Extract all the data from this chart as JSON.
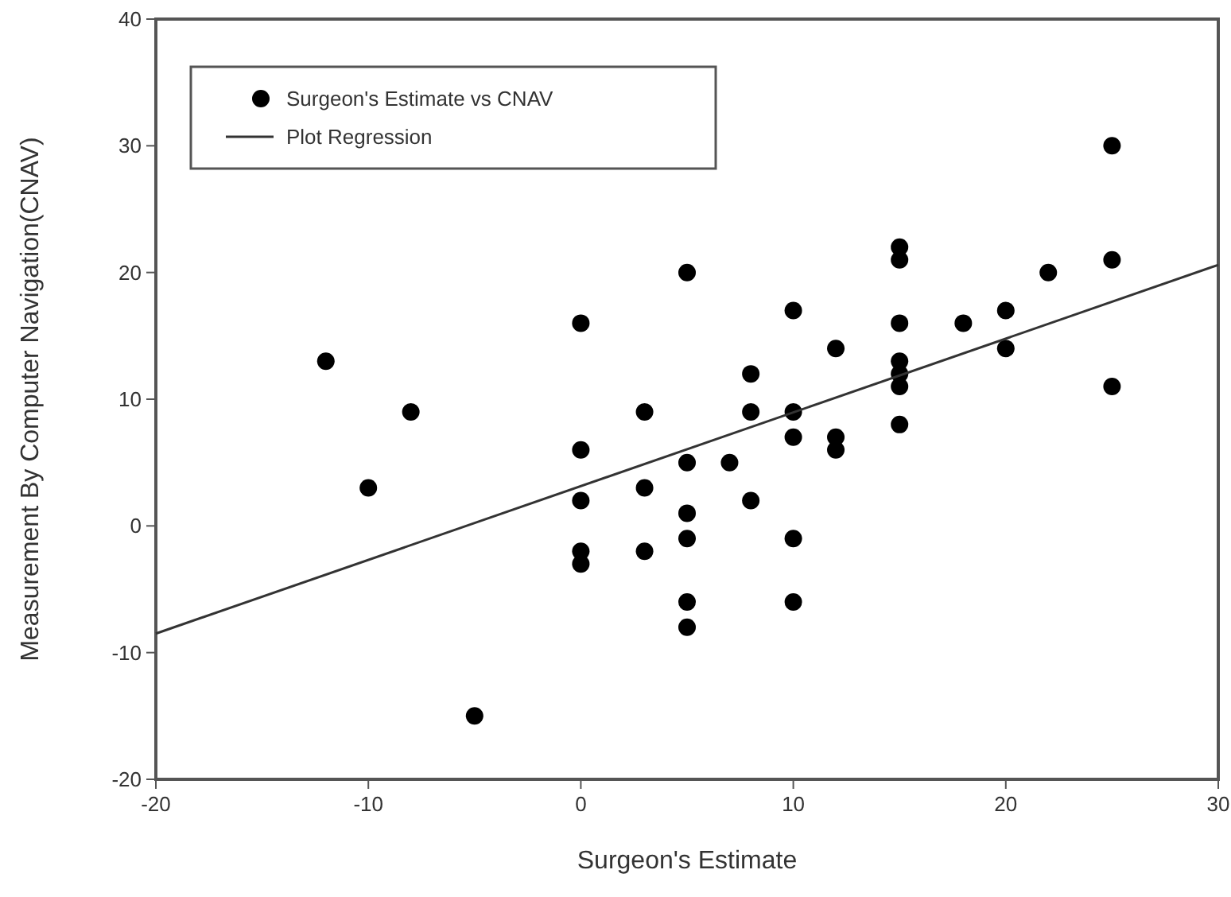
{
  "chart_data": {
    "type": "scatter",
    "xlabel": "Surgeon's Estimate",
    "ylabel": "Measurement By Computer Navigation(CNAV)",
    "xlim": [
      -20,
      30
    ],
    "xticks": [
      -20,
      -10,
      0,
      10,
      20,
      30
    ],
    "ylim": [
      -20,
      40
    ],
    "yticks": [
      -20,
      -10,
      0,
      10,
      20,
      30,
      40
    ],
    "grid": false,
    "legend": "top left",
    "series": [
      {
        "name": "Surgeon's Estimate vs CNAV",
        "marker": "circle",
        "color": "#000000",
        "x": [
          -12,
          -10,
          -8,
          -5,
          0,
          0,
          0,
          0,
          0,
          3,
          3,
          3,
          5,
          5,
          5,
          5,
          5,
          5,
          7,
          8,
          8,
          8,
          10,
          10,
          10,
          10,
          10,
          12,
          12,
          12,
          15,
          15,
          15,
          15,
          15,
          15,
          15,
          18,
          20,
          20,
          22,
          25,
          25,
          25
        ],
        "values": [
          13,
          3,
          9,
          -15,
          16,
          6,
          2,
          -2,
          -3,
          9,
          3,
          -2,
          20,
          5,
          1,
          -1,
          -6,
          -8,
          5,
          12,
          9,
          2,
          17,
          9,
          7,
          -1,
          -6,
          14,
          7,
          6,
          22,
          21,
          16,
          13,
          12,
          11,
          8,
          16,
          17,
          14,
          20,
          30,
          21,
          11
        ]
      },
      {
        "name": "Plot Regression",
        "type": "line",
        "marker": "none",
        "line_style": "solid",
        "color": "#333333",
        "x": [
          -20,
          30
        ],
        "values": [
          -8.5,
          20.6
        ]
      }
    ]
  }
}
